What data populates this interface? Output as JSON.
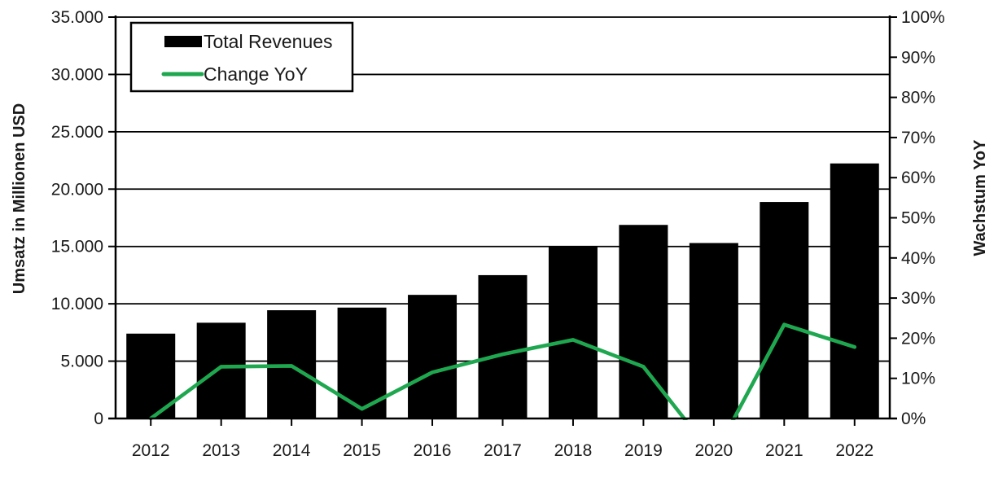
{
  "chart_data": {
    "type": "bar+line",
    "categories": [
      "2012",
      "2013",
      "2014",
      "2015",
      "2016",
      "2017",
      "2018",
      "2019",
      "2020",
      "2021",
      "2022"
    ],
    "series": [
      {
        "name": "Total Revenues",
        "type": "bar",
        "axis": "left",
        "values": [
          7400,
          8350,
          9440,
          9670,
          10780,
          12500,
          14950,
          16880,
          15300,
          18880,
          22240
        ]
      },
      {
        "name": "Change YoY",
        "type": "line",
        "axis": "right",
        "values_percent": [
          0,
          12.9,
          13.1,
          2.4,
          11.5,
          16.0,
          19.6,
          12.9,
          -9.4,
          23.4,
          17.8
        ],
        "clipped_below_zero_at": "2020"
      }
    ],
    "left_axis": {
      "title": "Umsatz in Millionen USD",
      "min": 0,
      "max": 35000,
      "step": 5000,
      "tick_labels_top_to_bottom": [
        "35.000",
        "30.000",
        "25.000",
        "20.000",
        "15.000",
        "10.000",
        "5.000",
        "0"
      ]
    },
    "right_axis": {
      "title": "Wachstum YoY",
      "min": 0,
      "max": 100,
      "step": 10,
      "tick_labels_top_to_bottom": [
        "100%",
        "90%",
        "80%",
        "70%",
        "60%",
        "50%",
        "40%",
        "30%",
        "20%",
        "10%",
        "0%"
      ]
    },
    "legend": {
      "position": "top-left-inside"
    },
    "grid": "horizontal-major-only",
    "colors": {
      "bar": "#000000",
      "line": "#1FA750",
      "background": "#FFFFFF",
      "axis": "#000000",
      "text": "#1A1A1A"
    }
  }
}
